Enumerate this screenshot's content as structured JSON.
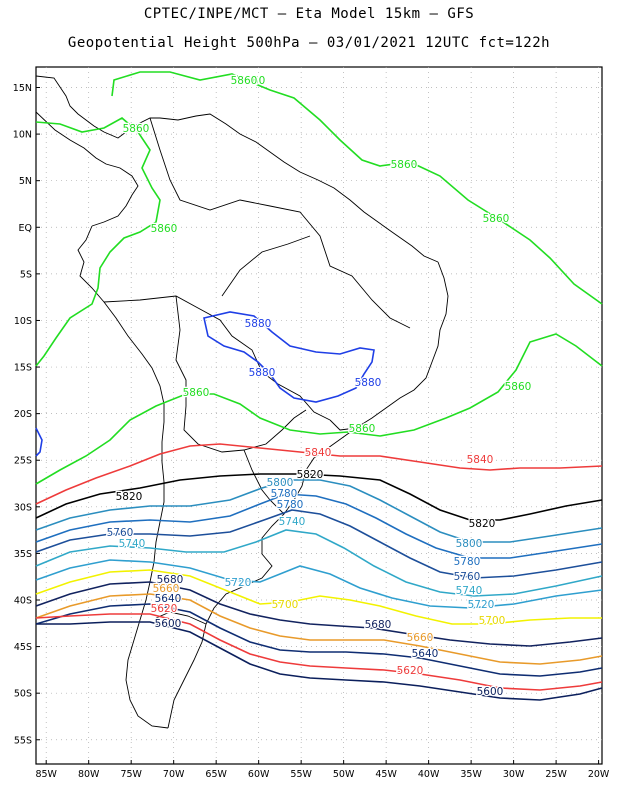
{
  "header": {
    "line1": "CPTEC/INPE/MCT –  Eta Model 15km – GFS",
    "line2": "Geopotential Height 500hPa – 03/01/2021 12UTC fct=122h"
  },
  "axes": {
    "lon_labels": [
      "85W",
      "80W",
      "75W",
      "70W",
      "65W",
      "60W",
      "55W",
      "50W",
      "45W",
      "40W",
      "35W",
      "30W",
      "25W",
      "20W"
    ],
    "lat_labels": [
      "15N",
      "10N",
      "5N",
      "EQ",
      "5S",
      "10S",
      "15S",
      "20S",
      "25S",
      "30S",
      "35S",
      "40S",
      "45S",
      "50S",
      "55S"
    ]
  },
  "contours": [
    {
      "value": 5860,
      "color": "#22dd22"
    },
    {
      "value": 5880,
      "color": "#1f3fe6"
    },
    {
      "value": 5840,
      "color": "#ee3b3b"
    },
    {
      "value": 5820,
      "color": "#000000"
    },
    {
      "value": 5800,
      "color": "#2b8ebf"
    },
    {
      "value": 5780,
      "color": "#1f6fbf"
    },
    {
      "value": 5760,
      "color": "#1d4f9a"
    },
    {
      "value": 5740,
      "color": "#30a8c8"
    },
    {
      "value": 5720,
      "color": "#2f9fcf"
    },
    {
      "value": 5700,
      "color": "#f2f200"
    },
    {
      "value": 5680,
      "color": "#12235f"
    },
    {
      "value": 5660,
      "color": "#e89a2a"
    },
    {
      "value": 5640,
      "color": "#0f2d72"
    },
    {
      "value": 5620,
      "color": "#ee3b3b"
    },
    {
      "value": 5600,
      "color": "#0b1f5c"
    }
  ],
  "contour_labels": [
    {
      "text": "5860",
      "color": "#22dd22"
    },
    {
      "text": "5860",
      "color": "#22dd22"
    },
    {
      "text": "5860",
      "color": "#22dd22"
    },
    {
      "text": "5860",
      "color": "#22dd22"
    },
    {
      "text": "5860",
      "color": "#22dd22"
    },
    {
      "text": "5860",
      "color": "#22dd22"
    },
    {
      "text": "5860",
      "color": "#22dd22"
    },
    {
      "text": "5860",
      "color": "#22dd22"
    },
    {
      "text": "5860",
      "color": "#22dd22"
    },
    {
      "text": "5880",
      "color": "#1f3fe6"
    },
    {
      "text": "5880",
      "color": "#1f3fe6"
    },
    {
      "text": "5880",
      "color": "#1f3fe6"
    },
    {
      "text": "5840",
      "color": "#ee3b3b"
    },
    {
      "text": "5840",
      "color": "#ee3b3b"
    },
    {
      "text": "5820",
      "color": "#000000"
    },
    {
      "text": "5820",
      "color": "#000000"
    },
    {
      "text": "5820",
      "color": "#000000"
    },
    {
      "text": "5800",
      "color": "#2b8ebf"
    },
    {
      "text": "5800",
      "color": "#2b8ebf"
    },
    {
      "text": "5780",
      "color": "#1f6fbf"
    },
    {
      "text": "5780",
      "color": "#1f6fbf"
    },
    {
      "text": "5780",
      "color": "#1f6fbf"
    },
    {
      "text": "5760",
      "color": "#1d4f9a"
    },
    {
      "text": "5760",
      "color": "#1d4f9a"
    },
    {
      "text": "5740",
      "color": "#30a8c8"
    },
    {
      "text": "5740",
      "color": "#30a8c8"
    },
    {
      "text": "5740",
      "color": "#30a8c8"
    },
    {
      "text": "5720",
      "color": "#2f9fcf"
    },
    {
      "text": "5720",
      "color": "#2f9fcf"
    },
    {
      "text": "5700",
      "color": "#e6d800"
    },
    {
      "text": "5700",
      "color": "#e6d800"
    },
    {
      "text": "5680",
      "color": "#12235f"
    },
    {
      "text": "5680",
      "color": "#12235f"
    },
    {
      "text": "5660",
      "color": "#e89a2a"
    },
    {
      "text": "5660",
      "color": "#e89a2a"
    },
    {
      "text": "5640",
      "color": "#0f2d72"
    },
    {
      "text": "5640",
      "color": "#0f2d72"
    },
    {
      "text": "5620",
      "color": "#ee3b3b"
    },
    {
      "text": "5620",
      "color": "#ee3b3b"
    },
    {
      "text": "5600",
      "color": "#0b1f5c"
    },
    {
      "text": "5600",
      "color": "#0b1f5c"
    }
  ]
}
